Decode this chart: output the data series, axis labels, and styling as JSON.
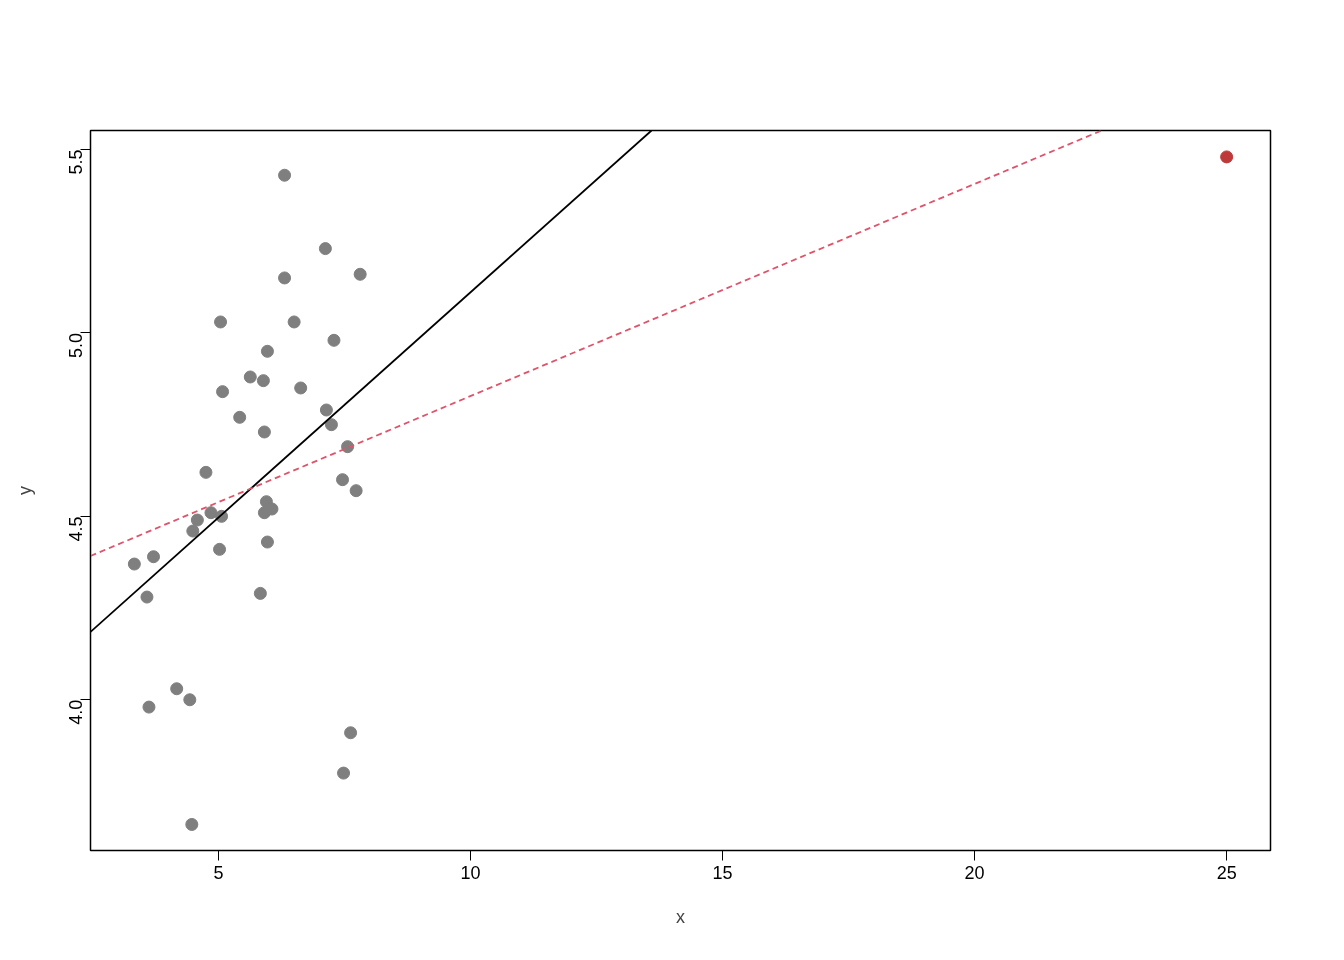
{
  "chart_data": {
    "type": "scatter",
    "xlabel": "x",
    "ylabel": "y",
    "xlim": [
      2.46,
      25.87
    ],
    "ylim": [
      3.589,
      5.552
    ],
    "xticks": [
      5,
      10,
      15,
      20,
      25
    ],
    "yticks": [
      {
        "value": 4,
        "label": "4.0"
      },
      {
        "value": 4.5,
        "label": "4.5"
      },
      {
        "value": 5,
        "label": "5.0"
      },
      {
        "value": 5.5,
        "label": "5.5"
      }
    ],
    "grid": false,
    "series": [
      {
        "marker": "circle",
        "color": "#7f7f7f",
        "x": [
          3.33,
          3.58,
          3.62,
          3.71,
          4.17,
          4.43,
          4.47,
          4.49,
          4.58,
          4.75,
          4.85,
          5.02,
          5.04,
          5.06,
          5.08,
          5.42,
          5.63,
          5.83,
          5.89,
          5.91,
          5.91,
          5.95,
          5.97,
          5.97,
          6.06,
          6.31,
          6.31,
          6.5,
          6.63,
          7.12,
          7.14,
          7.24,
          7.29,
          7.46,
          7.48,
          7.56,
          7.62,
          7.73,
          7.81
        ],
        "values": [
          4.37,
          4.28,
          3.98,
          4.39,
          4.03,
          4.0,
          3.66,
          4.46,
          4.49,
          4.62,
          4.51,
          4.41,
          5.03,
          4.5,
          4.84,
          4.77,
          4.88,
          4.29,
          4.87,
          4.73,
          4.51,
          4.54,
          4.95,
          4.43,
          4.52,
          5.15,
          5.43,
          5.03,
          4.85,
          5.23,
          4.79,
          4.75,
          4.98,
          4.6,
          3.8,
          4.69,
          3.91,
          4.57,
          5.16
        ]
      },
      {
        "marker": "circle",
        "color": "#be3a3a",
        "x": [
          25
        ],
        "values": [
          5.48
        ]
      },
      {
        "type": "line",
        "color": "#000000",
        "line_style": "solid",
        "x": [
          2.46,
          13.59
        ],
        "values": [
          4.185,
          5.552
        ]
      },
      {
        "type": "line",
        "color": "#df536b",
        "line_style": "dashed",
        "x": [
          2.46,
          22.52
        ],
        "values": [
          4.392,
          5.552
        ]
      }
    ]
  }
}
